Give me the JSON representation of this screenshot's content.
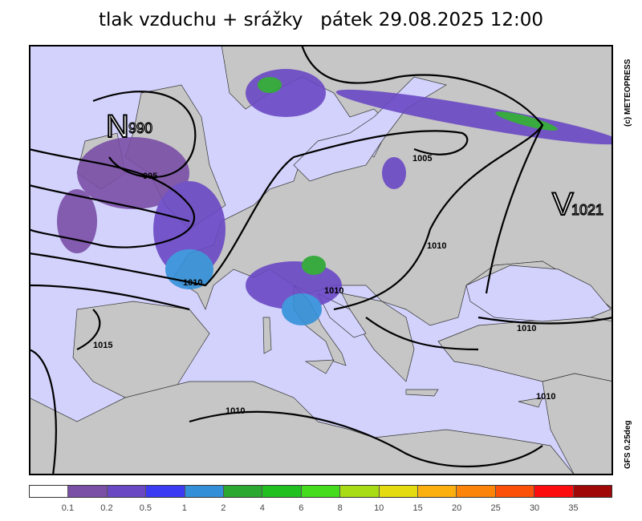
{
  "title": "tlak vzduchu + srážky   pátek 29.08.2025 12:00",
  "credits": {
    "copyright": "(c)  METEOPRESS",
    "model": "GFS  0.25deg"
  },
  "map": {
    "colors": {
      "sea": "#d2d2fc",
      "land": "#c6c6c6",
      "isobar": "#000000"
    },
    "pressure_centers": [
      {
        "letter": "N",
        "value": "990"
      },
      {
        "letter": "V",
        "value": "1021"
      }
    ],
    "isobar_labels": [
      "995",
      "1005",
      "1010",
      "1010",
      "1010",
      "1010",
      "1010",
      "1010",
      "1015",
      "1010"
    ]
  },
  "legend": {
    "unit_colors": [
      "#ffffff",
      "#7a4fa6",
      "#6a48c4",
      "#3b3bf4",
      "#3390d8",
      "#2aa830",
      "#21c021",
      "#44dc1c",
      "#a8dc14",
      "#e4dc10",
      "#fcb010",
      "#fc8408",
      "#fc5008",
      "#fc0c0c",
      "#a00808"
    ],
    "ticks": [
      "0.1",
      "0.2",
      "0.5",
      "1",
      "2",
      "4",
      "6",
      "8",
      "10",
      "15",
      "20",
      "25",
      "30",
      "35"
    ]
  }
}
